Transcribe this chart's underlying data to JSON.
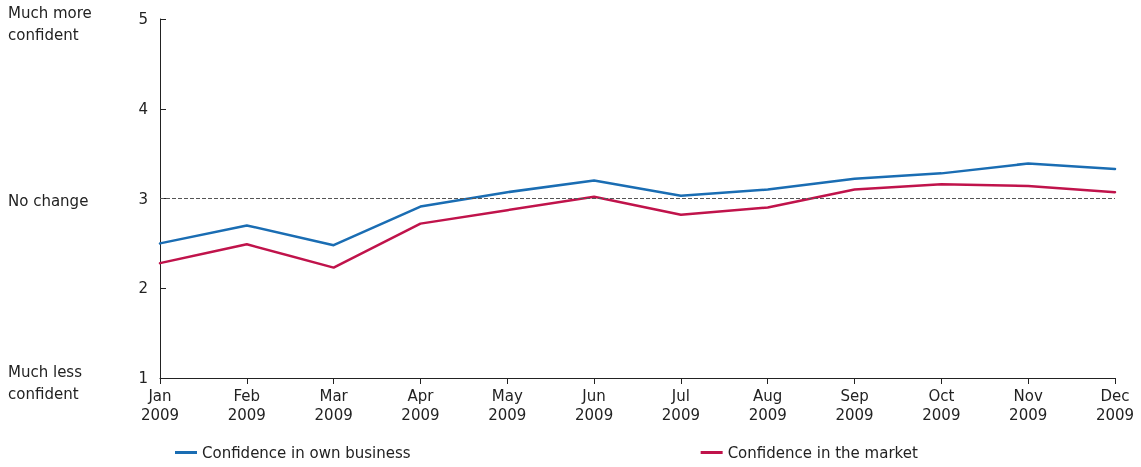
{
  "chart_data": {
    "type": "line",
    "categories": [
      "Jan 2009",
      "Feb 2009",
      "Mar 2009",
      "Apr 2009",
      "May 2009",
      "Jun 2009",
      "Jul 2009",
      "Aug 2009",
      "Sep 2009",
      "Oct 2009",
      "Nov 2009",
      "Dec 2009"
    ],
    "series": [
      {
        "name": "Confidence in own business",
        "color": "#1a6db3",
        "values": [
          2.5,
          2.7,
          2.48,
          2.91,
          3.07,
          3.2,
          3.03,
          3.1,
          3.22,
          3.28,
          3.39,
          3.33
        ]
      },
      {
        "name": "Confidence in the market",
        "color": "#c0134b",
        "values": [
          2.28,
          2.49,
          2.23,
          2.72,
          2.87,
          3.02,
          2.82,
          2.9,
          3.1,
          3.16,
          3.14,
          3.07
        ]
      }
    ],
    "ylim": [
      1,
      5
    ],
    "yticks": [
      1,
      2,
      3,
      4,
      5
    ],
    "ref_lines": [
      {
        "axis": "y",
        "value": 3,
        "color": "#555555",
        "line_style": "dashed"
      }
    ],
    "annotations": [
      "Much more confident",
      "No change",
      "Much less confident"
    ],
    "grid": false,
    "legend": "bottom",
    "marker": "none",
    "line_style": "solid"
  }
}
